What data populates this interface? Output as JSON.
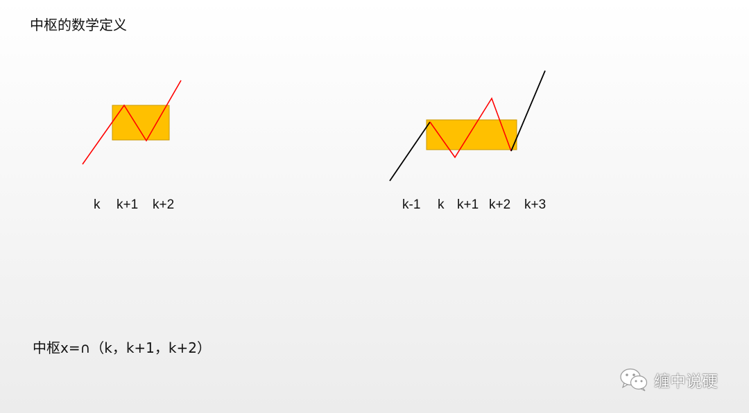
{
  "title": "中枢的数学定义",
  "left_diagram": {
    "labels": [
      "k",
      "k+1",
      "k+2"
    ]
  },
  "right_diagram": {
    "labels": [
      "k-1",
      "k",
      "k+1",
      "k+2",
      "k+3"
    ]
  },
  "formula": "中枢x=∩（k，k+1，k+2）",
  "watermark": {
    "icon": "wechat-icon",
    "text": "缠中说硬"
  },
  "colors": {
    "zone_fill": "#FFC000",
    "zone_stroke": "#C99700",
    "red_line": "#FF0000",
    "black_line": "#000000"
  }
}
